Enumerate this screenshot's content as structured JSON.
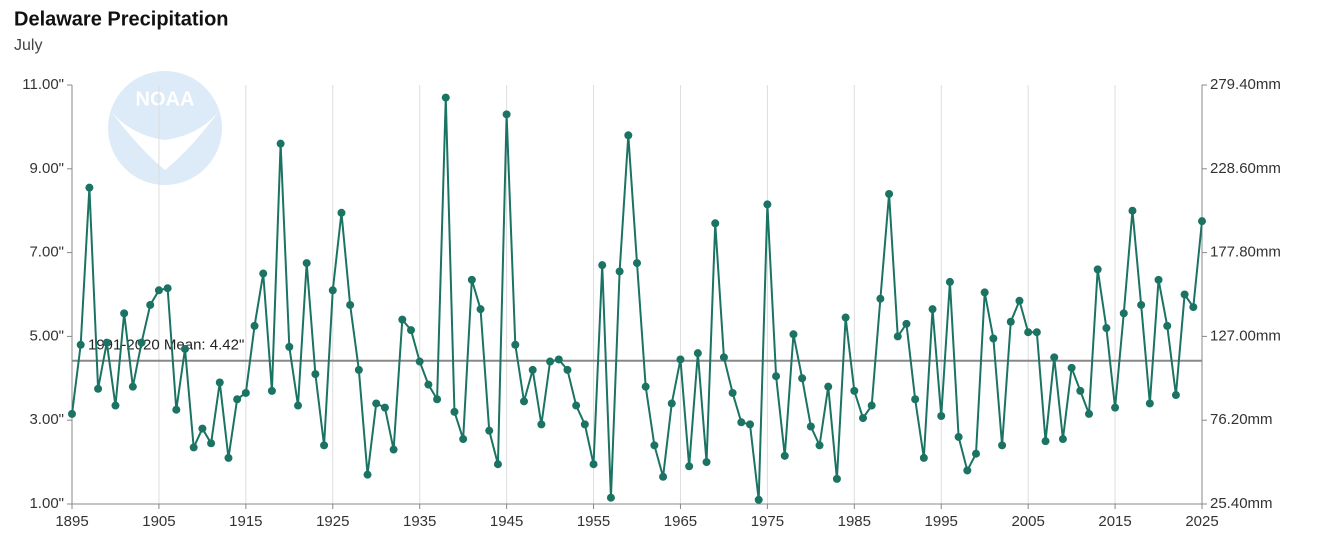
{
  "chart_data": {
    "type": "line",
    "title": "Delaware Precipitation",
    "subtitle": "July",
    "logo_text": "NOAA",
    "x": [
      1895,
      1896,
      1897,
      1898,
      1899,
      1900,
      1901,
      1902,
      1903,
      1904,
      1905,
      1906,
      1907,
      1908,
      1909,
      1910,
      1911,
      1912,
      1913,
      1914,
      1915,
      1916,
      1917,
      1918,
      1919,
      1920,
      1921,
      1922,
      1923,
      1924,
      1925,
      1926,
      1927,
      1928,
      1929,
      1930,
      1931,
      1932,
      1933,
      1934,
      1935,
      1936,
      1937,
      1938,
      1939,
      1940,
      1941,
      1942,
      1943,
      1944,
      1945,
      1946,
      1947,
      1948,
      1949,
      1950,
      1951,
      1952,
      1953,
      1954,
      1955,
      1956,
      1957,
      1958,
      1959,
      1960,
      1961,
      1962,
      1963,
      1964,
      1965,
      1966,
      1967,
      1968,
      1969,
      1970,
      1971,
      1972,
      1973,
      1974,
      1975,
      1976,
      1977,
      1978,
      1979,
      1980,
      1981,
      1982,
      1983,
      1984,
      1985,
      1986,
      1987,
      1988,
      1989,
      1990,
      1991,
      1992,
      1993,
      1994,
      1995,
      1996,
      1997,
      1998,
      1999,
      2000,
      2001,
      2002,
      2003,
      2004,
      2005,
      2006,
      2007,
      2008,
      2009,
      2010,
      2011,
      2012,
      2013,
      2014,
      2015,
      2016,
      2017,
      2018,
      2019,
      2020,
      2021,
      2022,
      2023,
      2024,
      2025
    ],
    "series": [
      {
        "color": "#1b7363",
        "values": [
          3.15,
          4.8,
          8.55,
          3.75,
          4.85,
          3.35,
          5.55,
          3.8,
          4.85,
          5.75,
          6.1,
          6.15,
          3.25,
          4.7,
          2.35,
          2.8,
          2.45,
          3.9,
          2.1,
          3.5,
          3.65,
          5.25,
          6.5,
          3.7,
          9.6,
          4.75,
          3.35,
          6.75,
          4.1,
          2.4,
          6.1,
          7.95,
          5.75,
          4.2,
          1.7,
          3.4,
          3.3,
          2.3,
          5.4,
          5.15,
          4.4,
          3.85,
          3.5,
          10.7,
          3.2,
          2.55,
          6.35,
          5.65,
          2.75,
          1.95,
          10.3,
          4.8,
          3.45,
          4.2,
          2.9,
          4.4,
          4.45,
          4.2,
          3.35,
          2.9,
          1.95,
          6.7,
          1.15,
          6.55,
          9.8,
          6.75,
          3.8,
          2.4,
          1.65,
          3.4,
          4.45,
          1.9,
          4.6,
          2.0,
          7.7,
          4.5,
          3.65,
          2.95,
          2.9,
          1.1,
          8.15,
          4.05,
          2.15,
          5.05,
          4.0,
          2.85,
          2.4,
          3.8,
          1.6,
          5.45,
          3.7,
          3.05,
          3.35,
          5.9,
          8.4,
          5.0,
          5.3,
          3.5,
          2.1,
          5.65,
          3.1,
          6.3,
          2.6,
          1.8,
          2.2,
          6.05,
          4.95,
          2.4,
          5.35,
          5.85,
          5.1,
          5.1,
          2.5,
          4.5,
          2.55,
          4.25,
          3.7,
          3.15,
          6.6,
          5.2,
          3.3,
          5.55,
          8.0,
          5.75,
          3.4,
          6.35,
          5.25,
          3.6,
          6.0,
          5.7,
          7.75
        ]
      }
    ],
    "xlim": [
      1895,
      2025
    ],
    "xticks": [
      1895,
      1905,
      1915,
      1925,
      1935,
      1945,
      1955,
      1965,
      1975,
      1985,
      1995,
      2005,
      2015,
      2025
    ],
    "ylim": [
      1,
      11
    ],
    "yticks": [
      {
        "value": 1,
        "label": "1.00\""
      },
      {
        "value": 3,
        "label": "3.00\""
      },
      {
        "value": 5,
        "label": "5.00\""
      },
      {
        "value": 7,
        "label": "7.00\""
      },
      {
        "value": 9,
        "label": "9.00\""
      },
      {
        "value": 11,
        "label": "11.00\""
      }
    ],
    "y2lim": [
      25.4,
      279.4
    ],
    "y2ticks": [
      {
        "value": 25.4,
        "label": "25.40mm"
      },
      {
        "value": 76.2,
        "label": "76.20mm"
      },
      {
        "value": 127,
        "label": "127.00mm"
      },
      {
        "value": 177.8,
        "label": "177.80mm"
      },
      {
        "value": 228.6,
        "label": "228.60mm"
      },
      {
        "value": 279.4,
        "label": "279.40mm"
      }
    ],
    "mean": {
      "value": 4.42,
      "label": "1991-2020 Mean: 4.42\""
    },
    "grid": "x"
  }
}
